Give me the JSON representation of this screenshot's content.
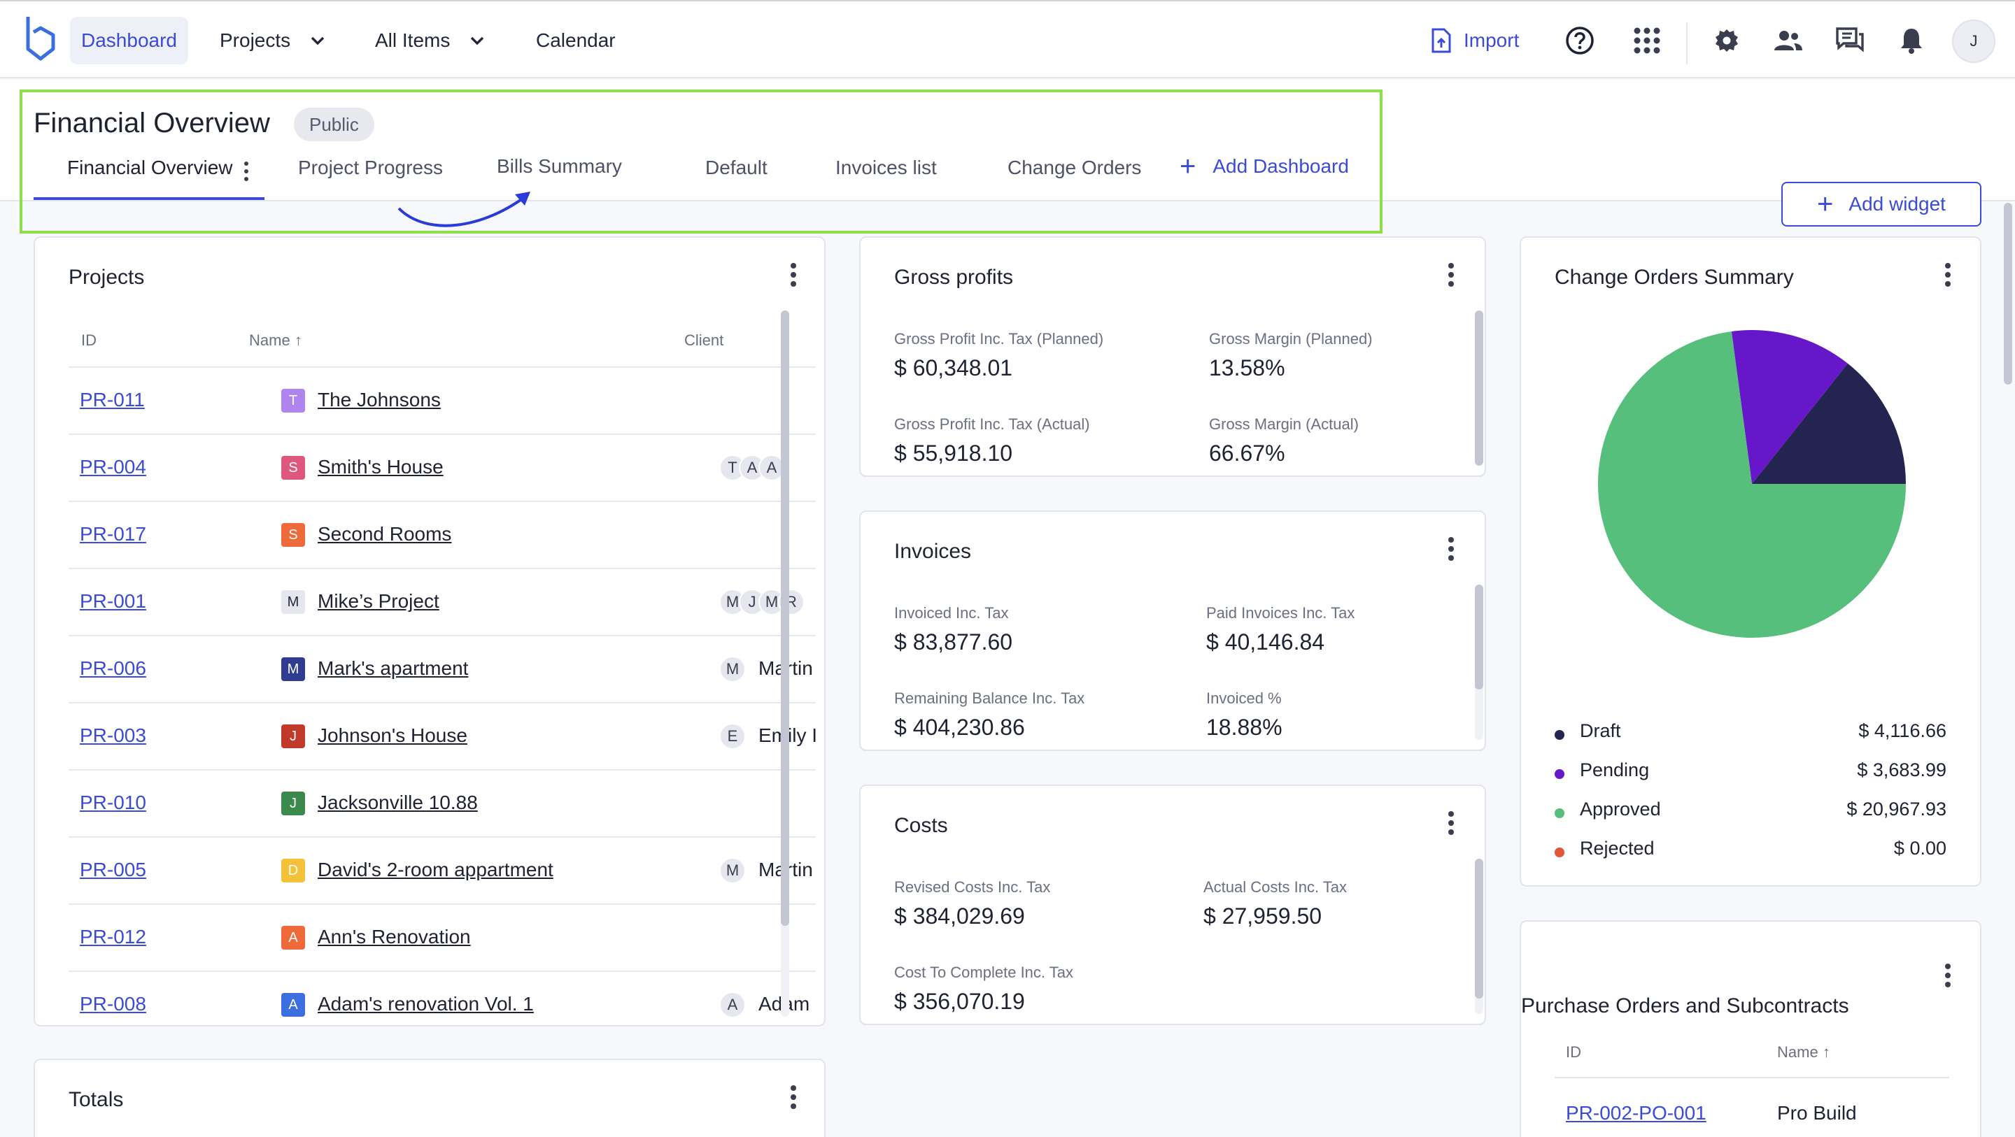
{
  "nav": {
    "dashboard": "Dashboard",
    "projects": "Projects",
    "all_items": "All Items",
    "calendar": "Calendar",
    "import": "Import",
    "avatar_initial": "J"
  },
  "header": {
    "title": "Financial Overview",
    "badge": "Public",
    "tabs": [
      "Financial Overview",
      "Project Progress",
      "Bills Summary",
      "Default",
      "Invoices list",
      "Change Orders"
    ],
    "add_dashboard": "Add Dashboard",
    "add_widget": "Add widget"
  },
  "projects": {
    "title": "Projects",
    "columns": [
      "ID",
      "Name",
      "Client"
    ],
    "rows": [
      {
        "id": "PR-011",
        "initial": "T",
        "color": "#b084ee",
        "name": "The Johnsons",
        "avatars": [],
        "client": ""
      },
      {
        "id": "PR-004",
        "initial": "S",
        "color": "#e0577d",
        "name": "Smith's House",
        "avatars": [
          "T",
          "A",
          "A"
        ],
        "client": ""
      },
      {
        "id": "PR-017",
        "initial": "S",
        "color": "#ef6a3a",
        "name": "Second Rooms",
        "avatars": [],
        "client": ""
      },
      {
        "id": "PR-001",
        "initial": "M",
        "color": "#e6e7ee",
        "name": "Mike’s Project",
        "avatars": [
          "M",
          "J",
          "M",
          "R"
        ],
        "client": ""
      },
      {
        "id": "PR-006",
        "initial": "M",
        "color": "#2f3c8f",
        "name": "Mark's apartment",
        "avatars": [
          "M"
        ],
        "client": "Martin"
      },
      {
        "id": "PR-003",
        "initial": "J",
        "color": "#c0392b",
        "name": "Johnson's House",
        "avatars": [
          "E"
        ],
        "client": "Emily I"
      },
      {
        "id": "PR-010",
        "initial": "J",
        "color": "#3a8a4e",
        "name": "Jacksonville 10.88",
        "avatars": [],
        "client": ""
      },
      {
        "id": "PR-005",
        "initial": "D",
        "color": "#f3c13a",
        "name": "David's 2-room appartment",
        "avatars": [
          "M"
        ],
        "client": "Martin"
      },
      {
        "id": "PR-012",
        "initial": "A",
        "color": "#ef6a3a",
        "name": "Ann's Renovation",
        "avatars": [],
        "client": ""
      },
      {
        "id": "PR-008",
        "initial": "A",
        "color": "#3b6fe0",
        "name": "Adam's renovation Vol. 1",
        "avatars": [
          "A"
        ],
        "client": "Adam"
      }
    ]
  },
  "gross_profits": {
    "title": "Gross profits",
    "items": [
      {
        "label": "Gross Profit Inc. Tax (Planned)",
        "value": "$ 60,348.01"
      },
      {
        "label": "Gross Margin (Planned)",
        "value": "13.58%"
      },
      {
        "label": "Gross Profit Inc. Tax (Actual)",
        "value": "$ 55,918.10"
      },
      {
        "label": "Gross Margin (Actual)",
        "value": "66.67%"
      }
    ]
  },
  "invoices": {
    "title": "Invoices",
    "items": [
      {
        "label": "Invoiced Inc. Tax",
        "value": "$ 83,877.60"
      },
      {
        "label": "Paid Invoices Inc. Tax",
        "value": "$ 40,146.84"
      },
      {
        "label": "Remaining Balance Inc. Tax",
        "value": "$ 404,230.86"
      },
      {
        "label": "Invoiced %",
        "value": "18.88%"
      }
    ]
  },
  "costs": {
    "title": "Costs",
    "items": [
      {
        "label": "Revised Costs Inc. Tax",
        "value": "$ 384,029.69"
      },
      {
        "label": "Actual Costs Inc. Tax",
        "value": "$ 27,959.50"
      },
      {
        "label": "Cost To Complete Inc. Tax",
        "value": "$ 356,070.19"
      }
    ]
  },
  "change_orders": {
    "title": "Change Orders Summary",
    "legend": [
      {
        "label": "Draft",
        "value": "$ 4,116.66",
        "color": "#23244f",
        "amount": 4116.66
      },
      {
        "label": "Pending",
        "value": "$ 3,683.99",
        "color": "#6617c9",
        "amount": 3683.99
      },
      {
        "label": "Approved",
        "value": "$ 20,967.93",
        "color": "#56bf7c",
        "amount": 20967.93
      },
      {
        "label": "Rejected",
        "value": "$ 0.00",
        "color": "#e2563a",
        "amount": 0
      }
    ]
  },
  "totals": {
    "title": "Totals"
  },
  "purchase_orders": {
    "title": "Purchase Orders and Subcontracts",
    "columns": [
      "ID",
      "Name"
    ],
    "rows": [
      {
        "id": "PR-002-PO-001",
        "name": "Pro Build"
      }
    ]
  }
}
